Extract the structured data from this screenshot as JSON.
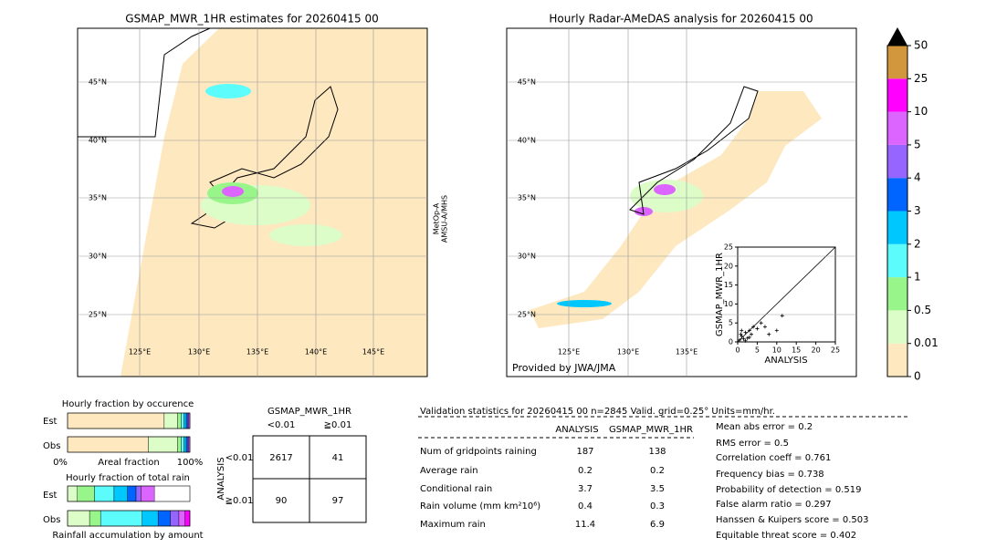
{
  "left_map": {
    "title": "GSMAP_MWR_1HR estimates for 20260415 00",
    "lat_labels": [
      "45°N",
      "40°N",
      "35°N",
      "30°N",
      "25°N"
    ],
    "lon_labels": [
      "125°E",
      "130°E",
      "135°E",
      "140°E",
      "145°E"
    ],
    "satellite": [
      "MetOp-A",
      "AMSU-A/MHS"
    ]
  },
  "right_map": {
    "title": "Hourly Radar-AMeDAS analysis for 20260415 00",
    "lat_labels": [
      "45°N",
      "40°N",
      "35°N",
      "30°N",
      "25°N"
    ],
    "lon_labels": [
      "125°E",
      "130°E",
      "135°E"
    ],
    "credit": "Provided by JWA/JMA"
  },
  "scatter": {
    "x_label": "ANALYSIS",
    "y_label": "GSMAP_MWR_1HR",
    "ticks": [
      0,
      5,
      10,
      15,
      20,
      25
    ],
    "x": [
      0.5,
      1,
      1.5,
      2,
      2.5,
      3,
      3.5,
      4,
      5,
      6,
      7,
      8,
      10,
      11.4,
      1,
      2,
      3,
      0.8
    ],
    "y": [
      0.5,
      1.5,
      0.8,
      2.5,
      1,
      3,
      2,
      4,
      3.5,
      5,
      4,
      2,
      3,
      6.9,
      3,
      0.3,
      1.2,
      2
    ]
  },
  "colorbar": {
    "labels": [
      0,
      0.01,
      0.5,
      1,
      2,
      3,
      4,
      5,
      10,
      25,
      50
    ],
    "colors": [
      "#fde8c0",
      "#dcfcc8",
      "#98f58a",
      "#5cfcfc",
      "#00c8ff",
      "#0064ff",
      "#9664ff",
      "#dc64ff",
      "#ff00ff",
      "#d2963c"
    ]
  },
  "fraction_occurrence": {
    "title": "Hourly fraction by occurence",
    "rows": [
      "Est",
      "Obs"
    ],
    "axis_labels": [
      "0%",
      "Areal fraction",
      "100%"
    ],
    "est": [
      0.79,
      0.11,
      0.03,
      0.02,
      0.02,
      0.01,
      0.01,
      0.01
    ],
    "obs": [
      0.66,
      0.24,
      0.03,
      0.02,
      0.02,
      0.01,
      0.01,
      0.01
    ]
  },
  "fraction_rain": {
    "title": "Hourly fraction of total rain",
    "rows": [
      "Est",
      "Obs"
    ],
    "footer": "Rainfall accumulation by amount",
    "est": [
      0,
      0.08,
      0.14,
      0.16,
      0.11,
      0.07,
      0.04,
      0.11,
      0
    ],
    "obs": [
      0,
      0.18,
      0.09,
      0.34,
      0.13,
      0.1,
      0.07,
      0.05,
      0.04
    ]
  },
  "contingency": {
    "title": "GSMAP_MWR_1HR",
    "columns": [
      "<0.01",
      "≧0.01"
    ],
    "row_axis": "ANALYSIS",
    "rows": [
      "<0.01",
      "≧0.01"
    ],
    "cells": [
      [
        "2617",
        "41"
      ],
      [
        "90",
        "97"
      ]
    ]
  },
  "validation": {
    "header": "Validation statistics for 20260415 00  n=2845 Valid. grid=0.25° Units=mm/hr.",
    "columns": [
      "ANALYSIS",
      "GSMAP_MWR_1HR"
    ],
    "rows": [
      [
        "Num of gridpoints raining",
        "187",
        "138"
      ],
      [
        "Average rain",
        "0.2",
        "0.2"
      ],
      [
        "Conditional rain",
        "3.7",
        "3.5"
      ],
      [
        "Rain volume (mm km²10⁶)",
        "0.4",
        "0.3"
      ],
      [
        "Maximum rain",
        "11.4",
        "6.9"
      ]
    ],
    "scores": [
      "Mean abs error =    0.2",
      "RMS error =    0.5",
      "Correlation coeff =  0.761",
      "Frequency bias =  0.738",
      "Probability of detection =  0.519",
      "False alarm ratio =  0.297",
      "Hanssen & Kuipers score =  0.503",
      "Equitable threat score =  0.402"
    ]
  }
}
